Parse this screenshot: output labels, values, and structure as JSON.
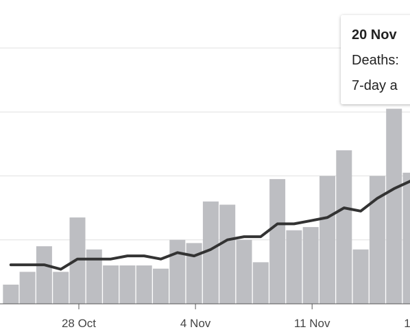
{
  "chart_data": {
    "type": "bar",
    "categories": [
      null,
      null,
      null,
      null,
      "28 Oct",
      null,
      null,
      null,
      null,
      null,
      null,
      "4 Nov",
      null,
      null,
      null,
      null,
      null,
      null,
      "11 Nov",
      null,
      null,
      null,
      null,
      null,
      null,
      "1"
    ],
    "series": [
      {
        "color": "#bdbec2",
        "values": [
          3.0,
          5.0,
          9.0,
          5.0,
          13.5,
          8.5,
          6.0,
          6.0,
          6.0,
          5.5,
          10.0,
          9.5,
          16.0,
          15.5,
          10.0,
          6.5,
          19.5,
          11.5,
          12.0,
          20.0,
          24.0,
          8.5,
          20.0,
          30.5,
          20.5,
          null
        ]
      },
      {
        "type": "line",
        "color": "#333333",
        "values": [
          6.1,
          6.1,
          6.1,
          5.4,
          7.0,
          7.0,
          7.0,
          7.5,
          7.5,
          7.0,
          8.0,
          7.5,
          8.5,
          10.0,
          10.5,
          10.5,
          12.5,
          12.5,
          13.0,
          13.5,
          15.0,
          14.5,
          16.5,
          18.0,
          19.2,
          null
        ]
      }
    ],
    "ylim": [
      0,
      47.5
    ],
    "yticks": [
      10,
      20,
      30,
      40
    ],
    "grid": true,
    "tooltip": {
      "title": "20 Nov",
      "lines": [
        "Deaths:",
        "7-day a"
      ]
    }
  }
}
